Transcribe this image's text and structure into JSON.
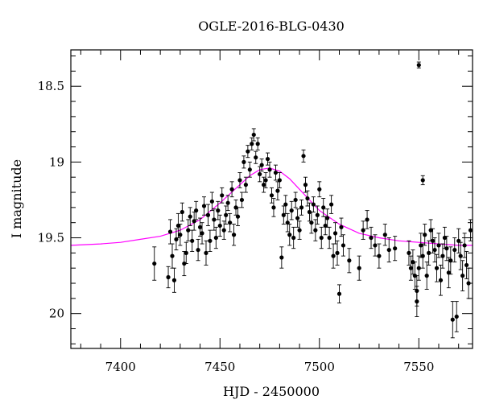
{
  "chart_data": {
    "type": "scatter",
    "title": "OGLE-2016-BLG-0430",
    "xlabel": "HJD - 2450000",
    "ylabel": "I magnitude",
    "xlim": [
      7375,
      7577
    ],
    "ylim": [
      20.23,
      18.26
    ],
    "y_inverted": true,
    "x_ticks": [
      {
        "value": 7400,
        "label": "7400"
      },
      {
        "value": 7450,
        "label": "7450"
      },
      {
        "value": 7500,
        "label": "7500"
      },
      {
        "value": 7550,
        "label": "7550"
      }
    ],
    "y_ticks": [
      {
        "value": 18.5,
        "label": "18.5"
      },
      {
        "value": 19,
        "label": "19"
      },
      {
        "value": 19.5,
        "label": "19.5"
      },
      {
        "value": 20,
        "label": "20"
      }
    ],
    "x_minor_step": 10,
    "y_minor_step": 0.1,
    "grid": false,
    "colors": {
      "points": "#000000",
      "model": "#ff00ff"
    },
    "series": [
      {
        "kind": "points",
        "x": [
          7417,
          7424,
          7425,
          7426,
          7427,
          7428,
          7429,
          7430,
          7431,
          7432,
          7433,
          7434,
          7435,
          7436,
          7437,
          7438,
          7439,
          7440,
          7441,
          7442,
          7443,
          7444,
          7445,
          7446,
          7447,
          7448,
          7449,
          7450,
          7451,
          7452,
          7453,
          7454,
          7455,
          7456,
          7457,
          7458,
          7459,
          7460,
          7461,
          7462,
          7463,
          7464,
          7465,
          7466,
          7467,
          7468,
          7469,
          7470,
          7471,
          7472,
          7473,
          7474,
          7475,
          7476,
          7477,
          7478,
          7479,
          7480,
          7481,
          7482,
          7483,
          7484,
          7485,
          7486,
          7487,
          7488,
          7489,
          7490,
          7491,
          7492,
          7493,
          7494,
          7495,
          7496,
          7497,
          7498,
          7499,
          7500,
          7501,
          7502,
          7503,
          7504,
          7505,
          7506,
          7507,
          7508,
          7509,
          7510,
          7511,
          7512,
          7515,
          7520,
          7522,
          7524,
          7526,
          7528,
          7530,
          7533,
          7535,
          7538,
          7545,
          7546,
          7547,
          7548,
          7549,
          7550,
          7551,
          7552,
          7553,
          7554,
          7555,
          7556,
          7557,
          7558,
          7559,
          7560,
          7561,
          7562,
          7563,
          7564,
          7565,
          7566,
          7567,
          7568,
          7569,
          7570,
          7571,
          7572,
          7573,
          7574,
          7575,
          7576,
          7549,
          7552
        ],
        "y": [
          19.67,
          19.76,
          19.46,
          19.62,
          19.78,
          19.51,
          19.42,
          19.48,
          19.33,
          19.67,
          19.6,
          19.45,
          19.36,
          19.52,
          19.39,
          19.32,
          19.58,
          19.43,
          19.47,
          19.29,
          19.6,
          19.35,
          19.52,
          19.26,
          19.38,
          19.5,
          19.32,
          19.42,
          19.22,
          19.45,
          19.35,
          19.27,
          19.4,
          19.18,
          19.48,
          19.3,
          19.36,
          19.12,
          19.25,
          19.0,
          19.15,
          18.93,
          19.05,
          18.88,
          18.82,
          18.97,
          18.88,
          19.08,
          19.02,
          19.15,
          19.12,
          18.98,
          19.05,
          19.22,
          19.3,
          19.07,
          19.19,
          19.12,
          19.63,
          19.35,
          19.28,
          19.4,
          19.48,
          19.32,
          19.5,
          19.25,
          19.37,
          19.45,
          19.3,
          18.96,
          19.15,
          19.24,
          19.33,
          19.4,
          19.28,
          19.45,
          19.35,
          19.18,
          19.5,
          19.3,
          19.42,
          19.37,
          19.5,
          19.28,
          19.62,
          19.47,
          19.6,
          19.87,
          19.43,
          19.55,
          19.65,
          19.7,
          19.45,
          19.38,
          19.5,
          19.55,
          19.62,
          19.48,
          19.58,
          19.57,
          19.6,
          19.7,
          19.66,
          19.75,
          19.85,
          19.7,
          19.55,
          19.62,
          19.48,
          19.75,
          19.6,
          19.45,
          19.52,
          19.58,
          19.7,
          19.55,
          19.78,
          19.62,
          19.5,
          19.57,
          19.73,
          19.65,
          20.04,
          19.58,
          20.02,
          19.52,
          19.62,
          19.75,
          19.55,
          19.68,
          19.8,
          19.45,
          19.92,
          19.12
        ],
        "errors": [
          0.11,
          0.07,
          0.08,
          0.08,
          0.08,
          0.07,
          0.08,
          0.07,
          0.06,
          0.08,
          0.07,
          0.07,
          0.06,
          0.07,
          0.06,
          0.06,
          0.07,
          0.06,
          0.07,
          0.06,
          0.08,
          0.07,
          0.07,
          0.06,
          0.07,
          0.07,
          0.06,
          0.07,
          0.05,
          0.06,
          0.06,
          0.05,
          0.06,
          0.05,
          0.07,
          0.05,
          0.06,
          0.05,
          0.05,
          0.04,
          0.05,
          0.04,
          0.05,
          0.04,
          0.04,
          0.04,
          0.04,
          0.05,
          0.04,
          0.05,
          0.05,
          0.04,
          0.05,
          0.05,
          0.06,
          0.05,
          0.06,
          0.05,
          0.07,
          0.06,
          0.06,
          0.06,
          0.07,
          0.06,
          0.07,
          0.05,
          0.06,
          0.06,
          0.05,
          0.04,
          0.05,
          0.05,
          0.06,
          0.07,
          0.05,
          0.07,
          0.06,
          0.05,
          0.07,
          0.06,
          0.06,
          0.06,
          0.07,
          0.06,
          0.08,
          0.07,
          0.08,
          0.06,
          0.06,
          0.07,
          0.08,
          0.08,
          0.06,
          0.06,
          0.07,
          0.07,
          0.08,
          0.07,
          0.08,
          0.08,
          0.08,
          0.08,
          0.08,
          0.09,
          0.1,
          0.08,
          0.08,
          0.08,
          0.07,
          0.09,
          0.08,
          0.07,
          0.08,
          0.08,
          0.09,
          0.08,
          0.1,
          0.08,
          0.07,
          0.08,
          0.1,
          0.09,
          0.12,
          0.08,
          0.1,
          0.08,
          0.09,
          0.1,
          0.08,
          0.09,
          0.1,
          0.07,
          0.1,
          0.03
        ]
      },
      {
        "kind": "points",
        "x": [
          7550
        ],
        "y": [
          18.36
        ],
        "errors": [
          0.02
        ]
      },
      {
        "kind": "model-curve",
        "x": [
          7375,
          7390,
          7400,
          7410,
          7420,
          7430,
          7440,
          7450,
          7460,
          7465,
          7470,
          7475,
          7480,
          7485,
          7490,
          7495,
          7500,
          7510,
          7520,
          7530,
          7540,
          7550,
          7560,
          7570,
          7577
        ],
        "y": [
          19.55,
          19.54,
          19.53,
          19.51,
          19.49,
          19.45,
          19.38,
          19.27,
          19.15,
          19.09,
          19.05,
          19.04,
          19.06,
          19.11,
          19.18,
          19.25,
          19.32,
          19.41,
          19.47,
          19.5,
          19.52,
          19.53,
          19.54,
          19.55,
          19.55
        ]
      }
    ]
  }
}
